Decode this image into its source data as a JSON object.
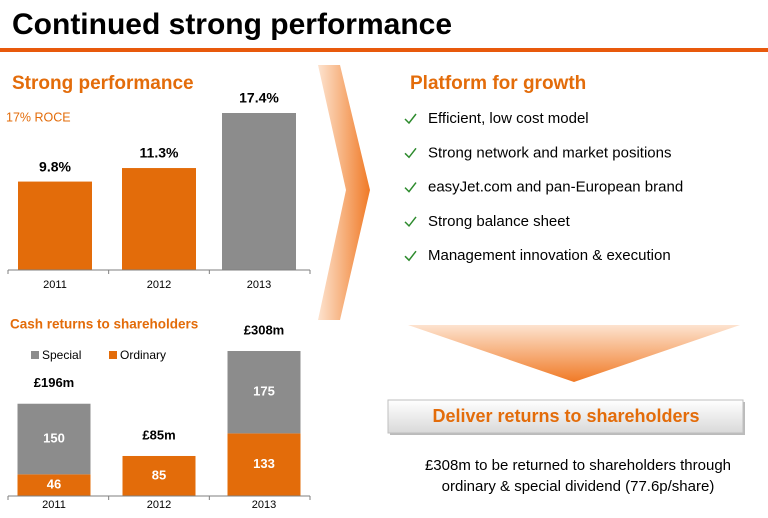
{
  "title": "Continued strong performance",
  "chart_data": [
    {
      "type": "bar",
      "title": "Strong performance",
      "subtitle": "17% ROCE",
      "categories": [
        "2011",
        "2012",
        "2013"
      ],
      "values": [
        9.8,
        11.3,
        17.4
      ],
      "value_labels": [
        "9.8%",
        "11.3%",
        "17.4%"
      ],
      "colors": [
        "#e36c0a",
        "#e36c0a",
        "#8c8c8c"
      ]
    },
    {
      "type": "stacked_bar",
      "title": "Cash returns to shareholders",
      "categories": [
        "2011",
        "2012",
        "2013"
      ],
      "series": [
        {
          "name": "Ordinary",
          "color": "#e36c0a",
          "values": [
            46,
            85,
            133
          ]
        },
        {
          "name": "Special",
          "color": "#8c8c8c",
          "values": [
            150,
            null,
            175
          ]
        }
      ],
      "annotations": [
        "£196m",
        "£85m",
        "£308m"
      ]
    }
  ],
  "platform": {
    "title": "Platform for growth",
    "items": [
      "Efficient, low cost model",
      "Strong network and market positions",
      "easyJet.com and pan-European brand",
      "Strong balance sheet",
      "Management innovation & execution"
    ]
  },
  "deliver": "Deliver returns to shareholders",
  "footer": [
    "£308m to be returned to shareholders through",
    "ordinary & special dividend  (77.6p/share)"
  ]
}
